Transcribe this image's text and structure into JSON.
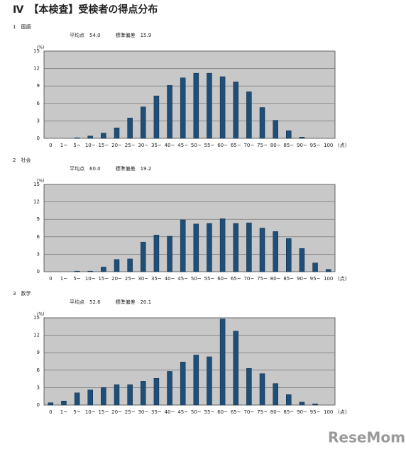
{
  "header": {
    "title": "Ⅳ　【本検査】受検者の得点分布"
  },
  "watermark": "ReseMom",
  "chart_data": [
    {
      "type": "bar",
      "title": "1　国語",
      "subtitle": "平均点　54.0　　　標準偏差　15.9",
      "y_label": "(%)",
      "x_label": "(点)",
      "categories": [
        "0",
        "1~",
        "5~",
        "10~",
        "15~",
        "20~",
        "25~",
        "30~",
        "35~",
        "40~",
        "45~",
        "50~",
        "55~",
        "60~",
        "65~",
        "70~",
        "75~",
        "80~",
        "85~",
        "90~",
        "95~",
        "100"
      ],
      "values": [
        0,
        0,
        0.1,
        0.4,
        0.9,
        1.8,
        3.5,
        5.4,
        7.3,
        9.1,
        10.4,
        11.2,
        11.2,
        10.6,
        9.7,
        8.0,
        5.3,
        3.1,
        1.3,
        0.2,
        0,
        0
      ],
      "color": "#1f4e79",
      "ylim": [
        0,
        15
      ],
      "yticks": [
        0,
        3,
        6,
        9,
        12,
        15
      ],
      "grid": true
    },
    {
      "type": "bar",
      "title": "2　社会",
      "subtitle": "平均点　60.0　　　標準偏差　19.2",
      "y_label": "(%)",
      "x_label": "(点)",
      "categories": [
        "0",
        "1~",
        "5~",
        "10~",
        "15~",
        "20~",
        "25~",
        "30~",
        "35~",
        "40~",
        "45~",
        "50~",
        "55~",
        "60~",
        "65~",
        "70~",
        "75~",
        "80~",
        "85~",
        "90~",
        "95~",
        "100"
      ],
      "values": [
        0,
        0,
        0.1,
        0.1,
        0.8,
        2.1,
        2.2,
        5.1,
        6.3,
        6.1,
        8.9,
        8.2,
        8.3,
        9.1,
        8.3,
        8.4,
        7.5,
        6.9,
        5.7,
        4.0,
        1.5,
        0.4
      ],
      "color": "#1f4e79",
      "ylim": [
        0,
        15
      ],
      "yticks": [
        0,
        3,
        6,
        9,
        12,
        15
      ],
      "grid": true
    },
    {
      "type": "bar",
      "title": "3　数学",
      "subtitle": "平均点　52.6　　　標準偏差　20.1",
      "y_label": "(%)",
      "x_label": "(点)",
      "categories": [
        "0",
        "1~",
        "5~",
        "10~",
        "15~",
        "20~",
        "25~",
        "30~",
        "35~",
        "40~",
        "45~",
        "50~",
        "55~",
        "60~",
        "65~",
        "70~",
        "75~",
        "80~",
        "85~",
        "90~",
        "95~",
        "100"
      ],
      "values": [
        0.4,
        0.7,
        2.1,
        2.6,
        3.0,
        3.5,
        3.5,
        4.1,
        4.6,
        5.8,
        7.4,
        8.6,
        8.3,
        14.8,
        12.7,
        6.3,
        5.4,
        3.7,
        1.8,
        0.5,
        0.2,
        0
      ],
      "color": "#1f4e79",
      "ylim": [
        0,
        15
      ],
      "yticks": [
        0,
        3,
        6,
        9,
        12,
        15
      ],
      "grid": true
    }
  ]
}
